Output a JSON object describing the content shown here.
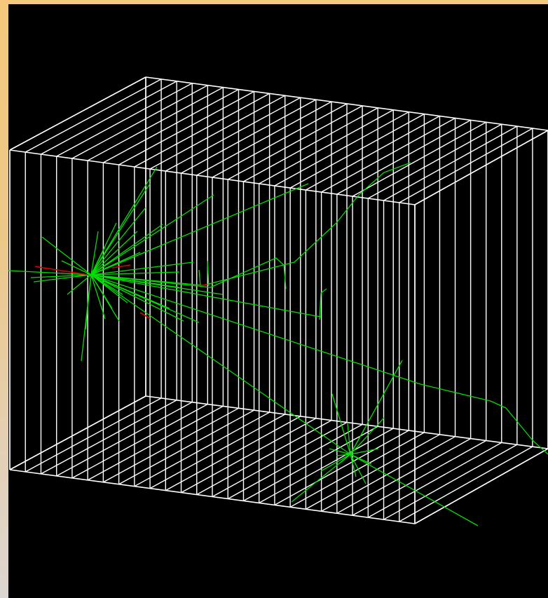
{
  "scene": {
    "background_color": "#000000",
    "frame_gradient": [
      "#f4c97c",
      "#e3d0b4",
      "#dcd6d2"
    ],
    "detector_color": "#ffffff",
    "track_color": "#00dd00",
    "highlight_track_color": "#dd0000"
  }
}
